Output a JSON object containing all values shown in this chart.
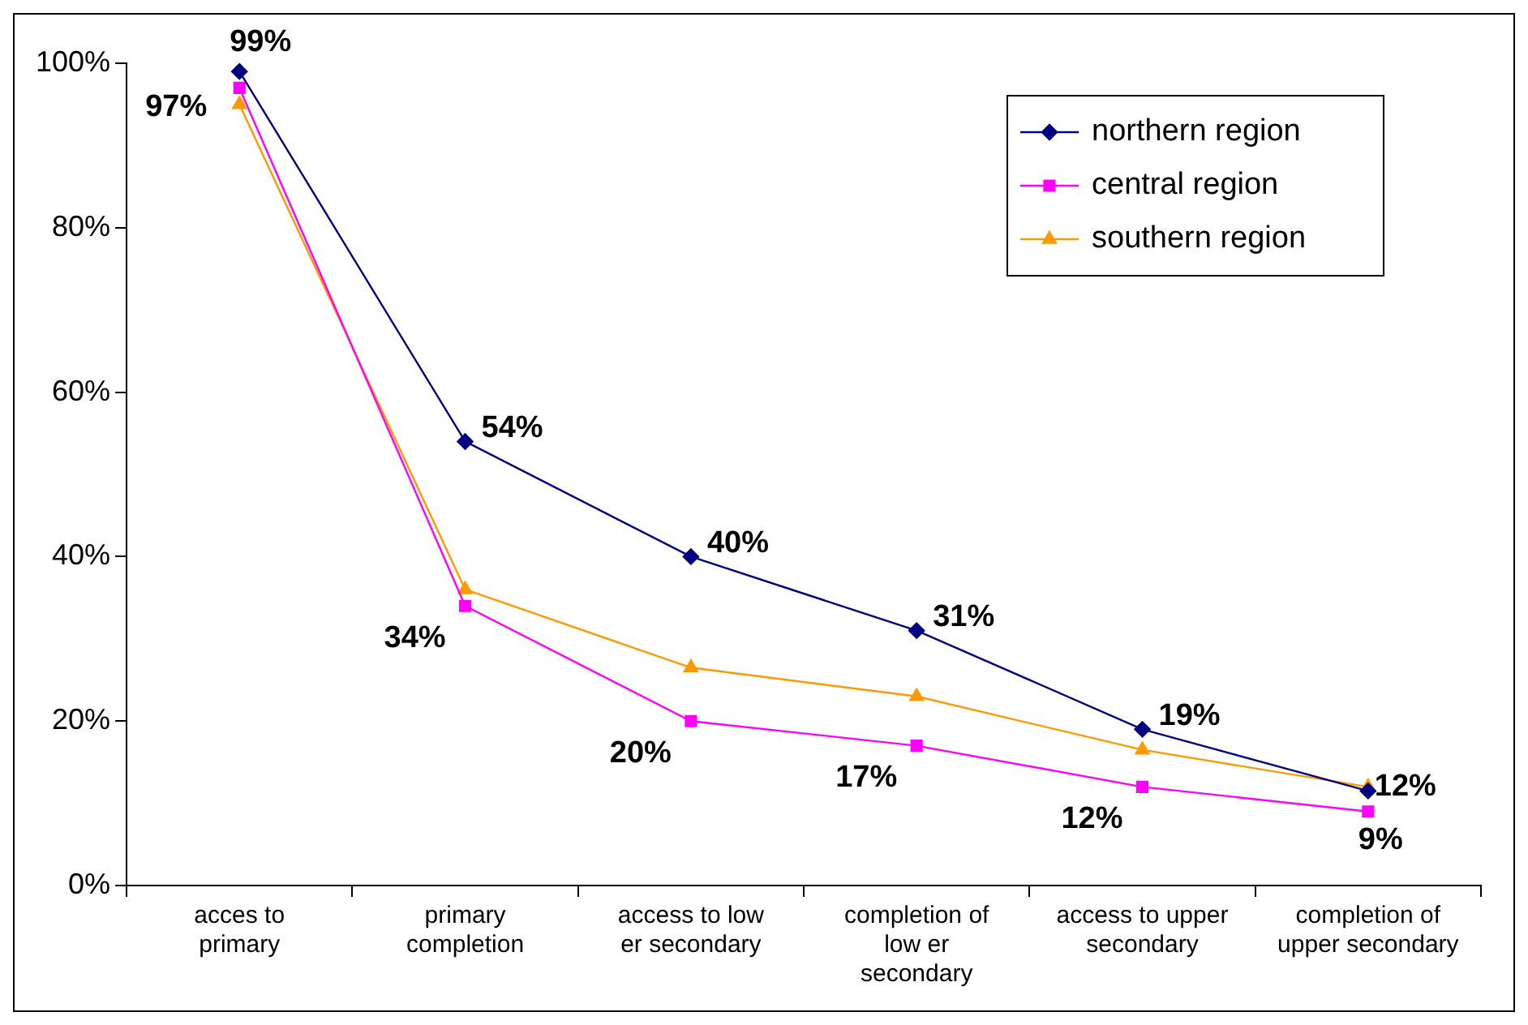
{
  "chart_data": {
    "type": "line",
    "categories": [
      "acces to primary",
      "primary completion",
      "access to low er secondary",
      "completion of low er secondary",
      "access to upper secondary",
      "completion of upper secondary"
    ],
    "series": [
      {
        "name": "northern region",
        "color": "#000080",
        "marker": "diamond",
        "values": [
          99,
          54,
          40,
          31,
          19,
          11.5
        ],
        "value_labels": [
          "99%",
          "54%",
          "40%",
          "31%",
          "19%",
          null
        ]
      },
      {
        "name": "central region",
        "color": "#ff00ff",
        "marker": "square",
        "values": [
          97,
          34,
          20,
          17,
          12,
          9
        ],
        "value_labels": [
          "97%",
          "34%",
          "20%",
          "17%",
          "12%",
          "9%"
        ]
      },
      {
        "name": "southern region",
        "color": "#ff9900",
        "marker": "triangle",
        "values": [
          95,
          36,
          26.5,
          23,
          16.5,
          12
        ],
        "value_labels": [
          null,
          null,
          null,
          null,
          null,
          "12%"
        ]
      }
    ],
    "ylim": [
      0,
      100
    ],
    "yticks": [
      {
        "value": 0,
        "label": "0%"
      },
      {
        "value": 20,
        "label": "20%"
      },
      {
        "value": 40,
        "label": "40%"
      },
      {
        "value": 60,
        "label": "60%"
      },
      {
        "value": 80,
        "label": "80%"
      },
      {
        "value": 100,
        "label": "100%"
      }
    ],
    "grid": false,
    "legend": "top right"
  }
}
